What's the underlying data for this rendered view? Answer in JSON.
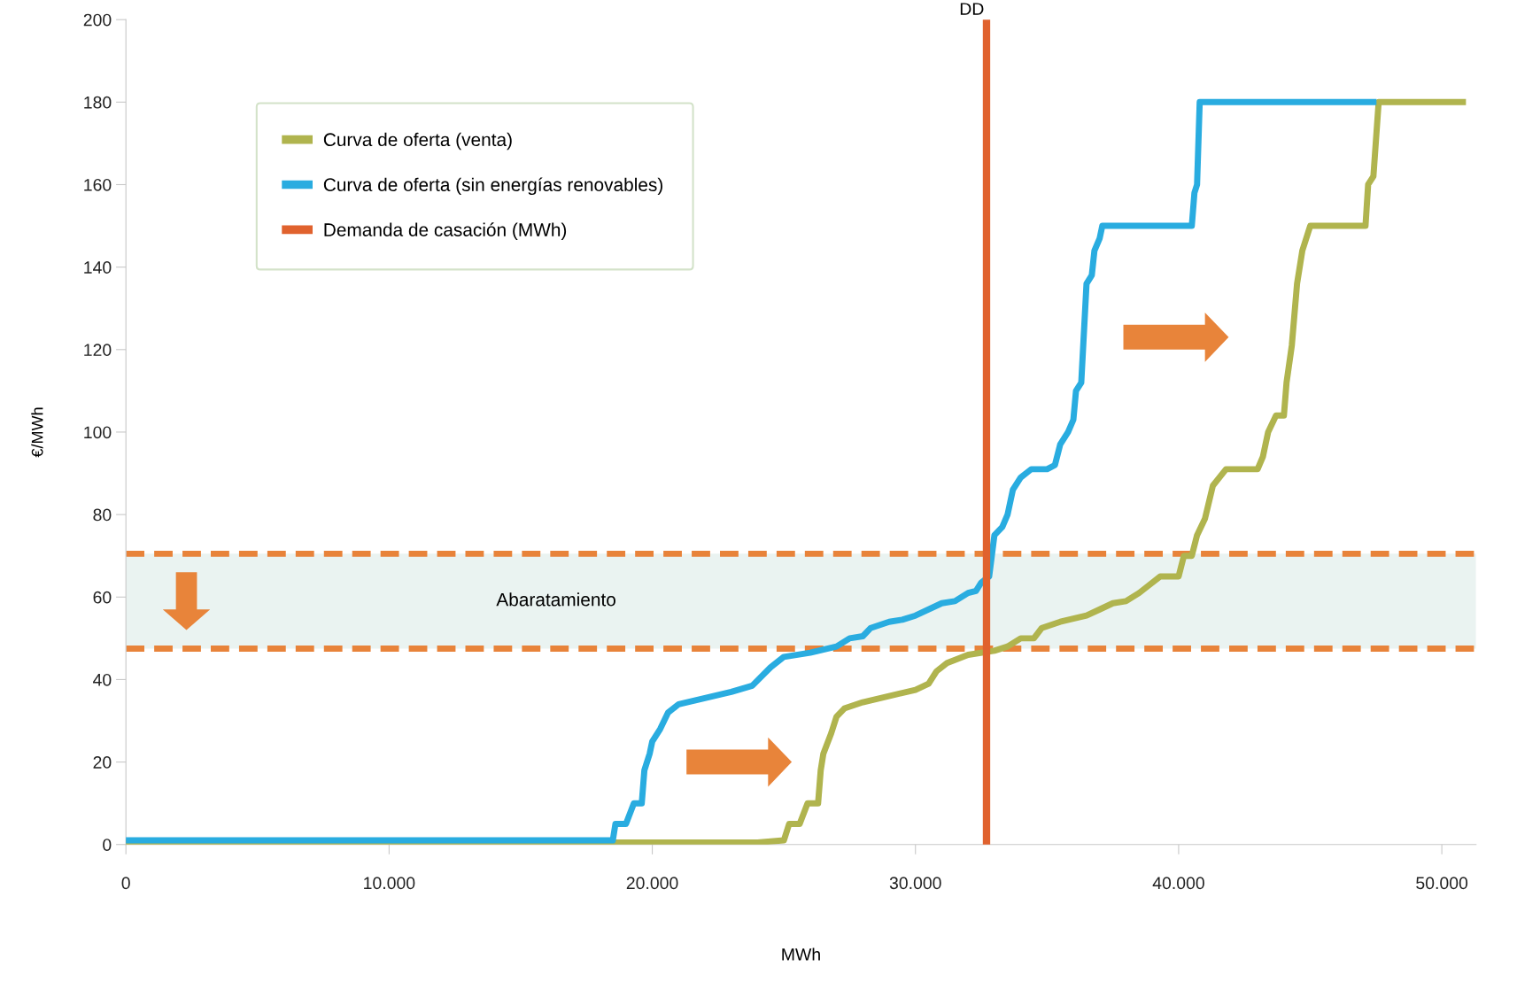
{
  "chart_data": {
    "type": "line",
    "xlabel": "MWh",
    "ylabel": "€/MWh",
    "xlim": [
      0,
      51300
    ],
    "ylim": [
      0,
      200
    ],
    "xticks": [
      {
        "value": 0,
        "label": "0"
      },
      {
        "value": 10000,
        "label": "10.000"
      },
      {
        "value": 20000,
        "label": "20.000"
      },
      {
        "value": 30000,
        "label": "30.000"
      },
      {
        "value": 40000,
        "label": "40.000"
      },
      {
        "value": 50000,
        "label": "50.000"
      }
    ],
    "yticks": [
      0,
      20,
      40,
      60,
      80,
      100,
      120,
      140,
      160,
      180,
      200
    ],
    "grid": false,
    "legend": "top left",
    "line_style": "solid",
    "marker": "none",
    "series": [
      {
        "name": "Curva de oferta (venta)",
        "color": "#b0b44e",
        "x": [
          0,
          24000,
          25000,
          25200,
          25600,
          25900,
          26300,
          26400,
          26500,
          26800,
          27000,
          27300,
          28000,
          30000,
          30500,
          30800,
          31200,
          32000,
          33000,
          33500,
          34000,
          34500,
          34800,
          35500,
          36500,
          37000,
          37500,
          38000,
          38500,
          38800,
          39300,
          40000,
          40200,
          40500,
          40700,
          41000,
          41300,
          41800,
          43000,
          43200,
          43400,
          43700,
          44000,
          44100,
          44300,
          44500,
          44700,
          45000,
          47100,
          47200,
          47400,
          47600,
          50800
        ],
        "values": [
          0.5,
          0.5,
          1,
          5,
          5,
          10,
          10,
          18,
          22,
          27,
          31,
          33,
          34.5,
          37.5,
          39,
          42,
          44,
          46,
          47,
          48,
          50,
          50,
          52.5,
          54,
          55.5,
          57,
          58.5,
          59,
          61,
          62.5,
          65,
          65,
          70,
          70,
          75,
          79,
          87,
          91,
          91,
          94,
          100,
          104,
          104,
          112,
          121,
          136,
          144,
          150,
          150,
          160,
          162,
          180,
          180
        ]
      },
      {
        "name": "Curva de oferta (sin energías renovables)",
        "color": "#29ace0",
        "x": [
          0,
          18000,
          18500,
          18600,
          19000,
          19300,
          19600,
          19700,
          19900,
          20000,
          20300,
          20600,
          21000,
          22000,
          23000,
          23800,
          24500,
          25000,
          26000,
          27000,
          27500,
          28000,
          28300,
          29000,
          29500,
          30000,
          31000,
          31500,
          32000,
          32300,
          32500,
          32800,
          32900,
          33000,
          33300,
          33500,
          33700,
          34000,
          34400,
          35000,
          35300,
          35500,
          35800,
          36000,
          36100,
          36300,
          36500,
          36700,
          36800,
          37000,
          37100,
          40500,
          40600,
          40700,
          40800,
          47400
        ],
        "values": [
          1,
          1,
          1,
          5,
          5,
          10,
          10,
          18,
          22,
          25,
          28,
          32,
          34,
          35.5,
          37,
          38.5,
          43,
          45.5,
          46.5,
          48,
          50,
          50.5,
          52.5,
          54,
          54.5,
          55.5,
          58.5,
          59,
          61,
          61.5,
          63.5,
          65,
          70,
          75,
          77,
          80,
          86,
          89,
          91,
          91,
          92,
          97,
          100,
          103,
          110,
          112,
          136,
          138,
          144,
          147,
          150,
          150,
          158,
          160,
          180,
          180
        ]
      },
      {
        "name": "Demanda de casación (MWh)",
        "color": "#e0622e",
        "x": [
          32700,
          32700
        ],
        "values": [
          0,
          200
        ]
      }
    ],
    "bands": [
      {
        "axis": "y",
        "from": 47.5,
        "to": 70.5,
        "label": "Abaratamiento",
        "color": "#eaf3f1"
      }
    ],
    "ref_lines": [
      {
        "axis": "y",
        "value": 70.5,
        "color": "#e8833a",
        "line_style": "dashed"
      },
      {
        "axis": "y",
        "value": 47.5,
        "color": "#e8833a",
        "line_style": "dashed"
      }
    ],
    "annotations": [
      {
        "text": "DD",
        "x": 32700,
        "y": 200
      }
    ]
  }
}
